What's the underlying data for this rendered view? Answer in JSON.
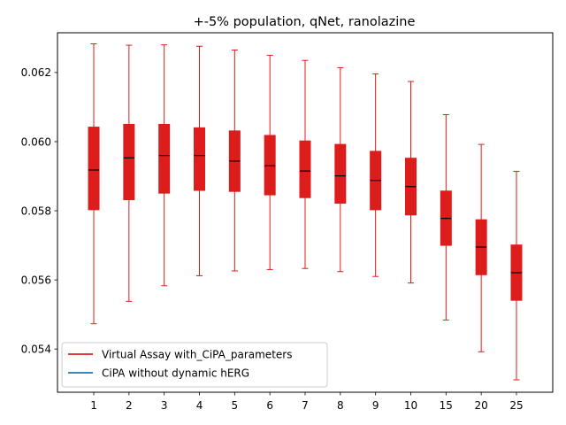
{
  "chart_data": {
    "type": "box",
    "title": "+-5% population, qNet, ranolazine",
    "xlabel": "",
    "ylabel": "",
    "categories": [
      "1",
      "2",
      "3",
      "4",
      "5",
      "6",
      "7",
      "8",
      "9",
      "10",
      "15",
      "20",
      "25"
    ],
    "ylim": [
      0.05275,
      0.06315
    ],
    "yticks": [
      0.054,
      0.056,
      0.058,
      0.06,
      0.062
    ],
    "ytick_labels": [
      "0.054",
      "0.056",
      "0.058",
      "0.060",
      "0.062"
    ],
    "series": [
      {
        "name": "Virtual Assay with_CiPA_parameters",
        "color": "#dd1c1c",
        "boxes": [
          {
            "whislo": 0.05473,
            "q1": 0.05803,
            "med": 0.05918,
            "q3": 0.06042,
            "whishi": 0.06283
          },
          {
            "whislo": 0.05538,
            "q1": 0.05832,
            "med": 0.05953,
            "q3": 0.0605,
            "whishi": 0.06279
          },
          {
            "whislo": 0.05583,
            "q1": 0.05851,
            "med": 0.0596,
            "q3": 0.0605,
            "whishi": 0.0628
          },
          {
            "whislo": 0.05612,
            "q1": 0.05859,
            "med": 0.0596,
            "q3": 0.0604,
            "whishi": 0.06276
          },
          {
            "whislo": 0.05626,
            "q1": 0.05856,
            "med": 0.05944,
            "q3": 0.06031,
            "whishi": 0.06265
          },
          {
            "whislo": 0.0563,
            "q1": 0.05846,
            "med": 0.0593,
            "q3": 0.06018,
            "whishi": 0.0625
          },
          {
            "whislo": 0.05633,
            "q1": 0.05838,
            "med": 0.05915,
            "q3": 0.06002,
            "whishi": 0.06235
          },
          {
            "whislo": 0.05624,
            "q1": 0.05822,
            "med": 0.05901,
            "q3": 0.05992,
            "whishi": 0.06214
          },
          {
            "whislo": 0.0561,
            "q1": 0.05803,
            "med": 0.05888,
            "q3": 0.05972,
            "whishi": 0.06196
          },
          {
            "whislo": 0.05591,
            "q1": 0.05788,
            "med": 0.0587,
            "q3": 0.05952,
            "whishi": 0.06174
          },
          {
            "whislo": 0.05484,
            "q1": 0.057,
            "med": 0.05778,
            "q3": 0.05857,
            "whishi": 0.06078
          },
          {
            "whislo": 0.05392,
            "q1": 0.05615,
            "med": 0.05695,
            "q3": 0.05774,
            "whishi": 0.05992
          },
          {
            "whislo": 0.05311,
            "q1": 0.05541,
            "med": 0.05621,
            "q3": 0.05701,
            "whishi": 0.05914
          }
        ]
      },
      {
        "name": "CiPA without dynamic hERG",
        "color": "#1f77b4",
        "boxes": []
      }
    ],
    "legend_position": "lower-left",
    "grid": false
  }
}
